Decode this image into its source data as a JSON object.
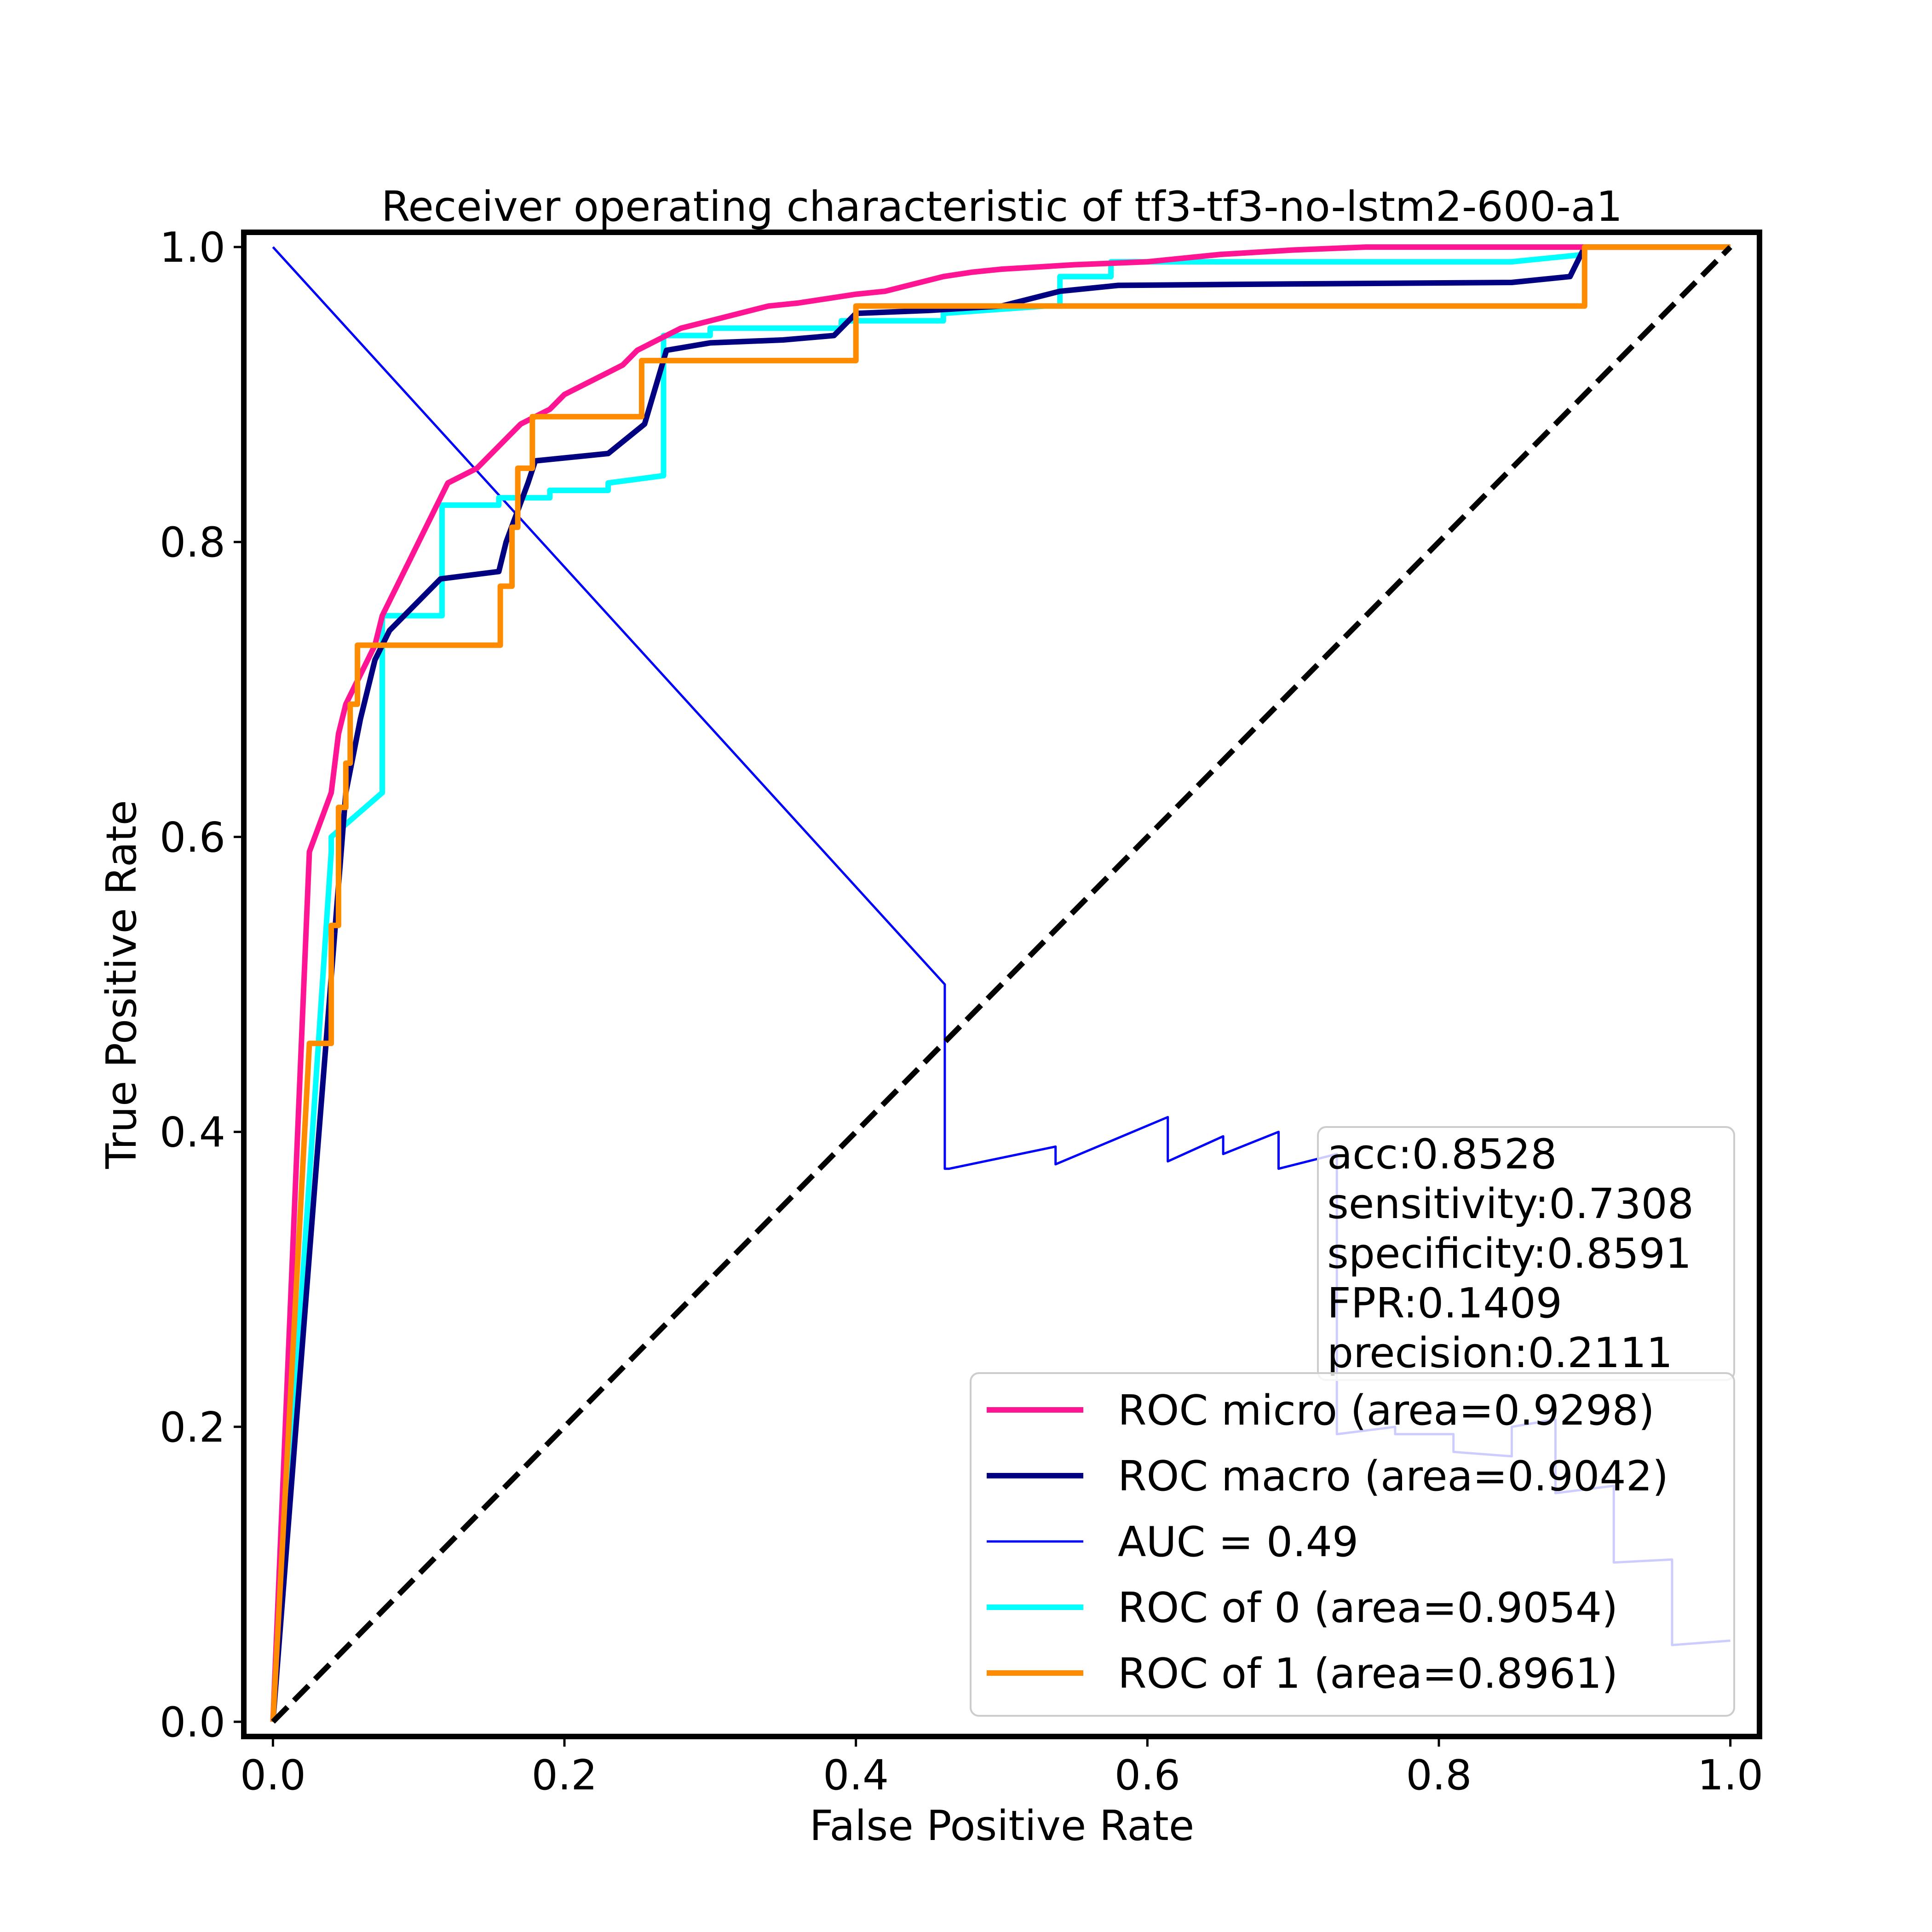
{
  "chart_data": {
    "type": "line",
    "title": "Receiver operating characteristic of tf3-tf3-no-lstm2-600-a1",
    "xlabel": "False Positive Rate",
    "ylabel": "True Positive Rate",
    "xlim": [
      -0.02,
      1.02
    ],
    "ylim": [
      -0.01,
      1.01
    ],
    "xticks": [
      "0.0",
      "0.2",
      "0.4",
      "0.6",
      "0.8",
      "1.0"
    ],
    "yticks": [
      "0.0",
      "0.2",
      "0.4",
      "0.6",
      "0.8",
      "1.0"
    ],
    "legend_position": "lower-right",
    "stats_position": "right",
    "stats_lines": [
      "acc:0.8528",
      "sensitivity:0.7308",
      "specificity:0.8591",
      "FPR:0.1409",
      "precision:0.2111"
    ],
    "diagonal": {
      "x": [
        0,
        1
      ],
      "y": [
        0,
        1
      ],
      "color": "#000000",
      "style": "dashed"
    },
    "series": [
      {
        "name": "ROC micro (area=0.9298)",
        "color": "#ff1493",
        "x": [
          0.0,
          0.025,
          0.04,
          0.045,
          0.05,
          0.055,
          0.06,
          0.065,
          0.07,
          0.075,
          0.08,
          0.085,
          0.09,
          0.095,
          0.1,
          0.105,
          0.11,
          0.115,
          0.12,
          0.13,
          0.14,
          0.15,
          0.16,
          0.17,
          0.18,
          0.19,
          0.2,
          0.21,
          0.22,
          0.23,
          0.24,
          0.25,
          0.26,
          0.28,
          0.3,
          0.32,
          0.34,
          0.36,
          0.38,
          0.4,
          0.42,
          0.44,
          0.46,
          0.48,
          0.5,
          0.55,
          0.6,
          0.65,
          0.7,
          0.75,
          0.8,
          0.85,
          0.9,
          0.95,
          1.0
        ],
        "y": [
          0.0,
          0.59,
          0.63,
          0.67,
          0.69,
          0.7,
          0.71,
          0.72,
          0.73,
          0.75,
          0.76,
          0.77,
          0.78,
          0.79,
          0.8,
          0.81,
          0.82,
          0.83,
          0.84,
          0.845,
          0.85,
          0.86,
          0.87,
          0.88,
          0.885,
          0.89,
          0.9,
          0.905,
          0.91,
          0.915,
          0.92,
          0.93,
          0.935,
          0.945,
          0.95,
          0.955,
          0.96,
          0.962,
          0.965,
          0.968,
          0.97,
          0.975,
          0.98,
          0.983,
          0.985,
          0.988,
          0.99,
          0.995,
          0.998,
          1.0,
          1.0,
          1.0,
          1.0,
          1.0,
          1.0
        ]
      },
      {
        "name": "ROC macro (area=0.9042)",
        "color": "#000080",
        "x": [
          0.0,
          0.03,
          0.05,
          0.06,
          0.07,
          0.08,
          0.1,
          0.115,
          0.155,
          0.16,
          0.175,
          0.18,
          0.23,
          0.255,
          0.27,
          0.3,
          0.35,
          0.385,
          0.4,
          0.45,
          0.5,
          0.54,
          0.58,
          0.7,
          0.85,
          0.89,
          0.9,
          1.0
        ],
        "y": [
          0.0,
          0.38,
          0.63,
          0.68,
          0.72,
          0.74,
          0.76,
          0.775,
          0.78,
          0.8,
          0.84,
          0.855,
          0.86,
          0.88,
          0.93,
          0.935,
          0.937,
          0.94,
          0.955,
          0.957,
          0.96,
          0.97,
          0.974,
          0.975,
          0.976,
          0.98,
          1.0,
          1.0
        ]
      },
      {
        "name": "AUC = 0.49",
        "color": "#0000ff",
        "x": [
          0.0,
          0.461,
          0.461,
          0.464,
          0.537,
          0.537,
          0.614,
          0.614,
          0.652,
          0.652,
          0.69,
          0.69,
          0.73,
          0.73,
          0.77,
          0.77,
          0.81,
          0.81,
          0.85,
          0.85,
          0.88,
          0.88,
          0.92,
          0.92,
          0.96,
          0.96,
          1.0
        ],
        "y": [
          1.0,
          0.5,
          0.375,
          0.375,
          0.39,
          0.378,
          0.41,
          0.38,
          0.397,
          0.385,
          0.4,
          0.375,
          0.385,
          0.195,
          0.2,
          0.195,
          0.195,
          0.183,
          0.18,
          0.2,
          0.205,
          0.155,
          0.16,
          0.108,
          0.11,
          0.052,
          0.055
        ]
      },
      {
        "name": "ROC of 0 (area=0.9054)",
        "color": "#00ffff",
        "x": [
          0.0,
          0.04,
          0.04,
          0.075,
          0.075,
          0.116,
          0.116,
          0.155,
          0.155,
          0.19,
          0.19,
          0.23,
          0.23,
          0.268,
          0.268,
          0.3,
          0.3,
          0.39,
          0.39,
          0.46,
          0.46,
          0.53,
          0.54,
          0.54,
          0.575,
          0.575,
          0.7,
          0.7,
          0.85,
          0.85,
          0.9,
          0.9,
          1.0
        ],
        "y": [
          0.0,
          0.59,
          0.6,
          0.63,
          0.75,
          0.75,
          0.825,
          0.825,
          0.83,
          0.83,
          0.835,
          0.835,
          0.84,
          0.845,
          0.94,
          0.94,
          0.945,
          0.945,
          0.95,
          0.95,
          0.955,
          0.96,
          0.96,
          0.98,
          0.98,
          0.99,
          0.99,
          0.99,
          0.99,
          0.99,
          0.995,
          1.0,
          1.0
        ]
      },
      {
        "name": "ROC of 1 (area=0.8961)",
        "color": "#ff8c00",
        "x": [
          0.0,
          0.025,
          0.04,
          0.04,
          0.045,
          0.045,
          0.05,
          0.05,
          0.053,
          0.053,
          0.058,
          0.058,
          0.06,
          0.06,
          0.156,
          0.156,
          0.164,
          0.164,
          0.168,
          0.168,
          0.178,
          0.178,
          0.253,
          0.253,
          0.4,
          0.4,
          0.9,
          0.9,
          1.0
        ],
        "y": [
          0.0,
          0.46,
          0.46,
          0.54,
          0.54,
          0.62,
          0.62,
          0.65,
          0.65,
          0.69,
          0.69,
          0.73,
          0.73,
          0.73,
          0.73,
          0.77,
          0.77,
          0.81,
          0.81,
          0.85,
          0.85,
          0.885,
          0.885,
          0.923,
          0.923,
          0.96,
          0.96,
          1.0,
          1.0
        ]
      }
    ]
  }
}
